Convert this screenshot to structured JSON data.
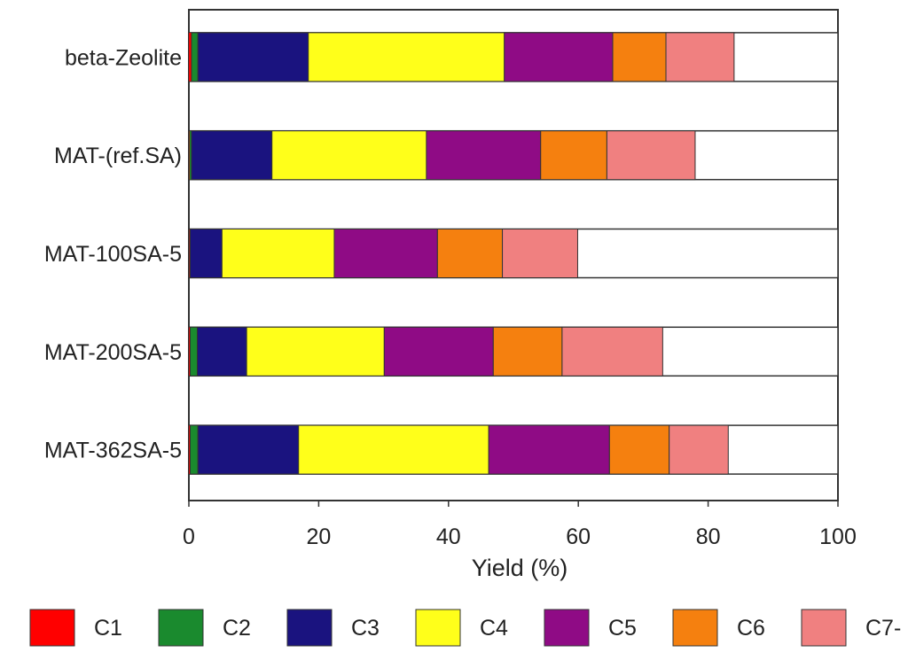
{
  "chart_data": {
    "type": "bar",
    "orientation": "horizontal",
    "stacked": true,
    "title": "",
    "xlabel": "Yield (%)",
    "ylabel": "",
    "xlim": [
      0,
      100
    ],
    "xticks": [
      0,
      20,
      40,
      60,
      80,
      100
    ],
    "grid": false,
    "legend_position": "bottom",
    "categories": [
      "beta-Zeolite",
      "MAT-(ref.SA)",
      "MAT-100SA-5",
      "MAT-200SA-5",
      "MAT-362SA-5"
    ],
    "series": [
      {
        "name": "C1",
        "color": "#ff0000",
        "values": [
          0.4,
          0.1,
          0.1,
          0.2,
          0.2
        ]
      },
      {
        "name": "C2",
        "color": "#1a8a2e",
        "values": [
          1.0,
          0.3,
          0.1,
          1.1,
          1.2
        ]
      },
      {
        "name": "C3",
        "color": "#1a137f",
        "values": [
          17.0,
          12.4,
          4.9,
          7.6,
          15.5
        ]
      },
      {
        "name": "C4",
        "color": "#ffff1a",
        "values": [
          30.2,
          23.8,
          17.3,
          21.2,
          29.3
        ]
      },
      {
        "name": "C5",
        "color": "#8f0b85",
        "values": [
          16.7,
          17.6,
          15.9,
          16.8,
          18.6
        ]
      },
      {
        "name": "C6",
        "color": "#f5800f",
        "values": [
          8.2,
          10.2,
          10.0,
          10.6,
          9.2
        ]
      },
      {
        "name": "C7-",
        "color": "#f08080",
        "values": [
          10.5,
          13.6,
          11.6,
          15.5,
          9.1
        ]
      }
    ]
  }
}
